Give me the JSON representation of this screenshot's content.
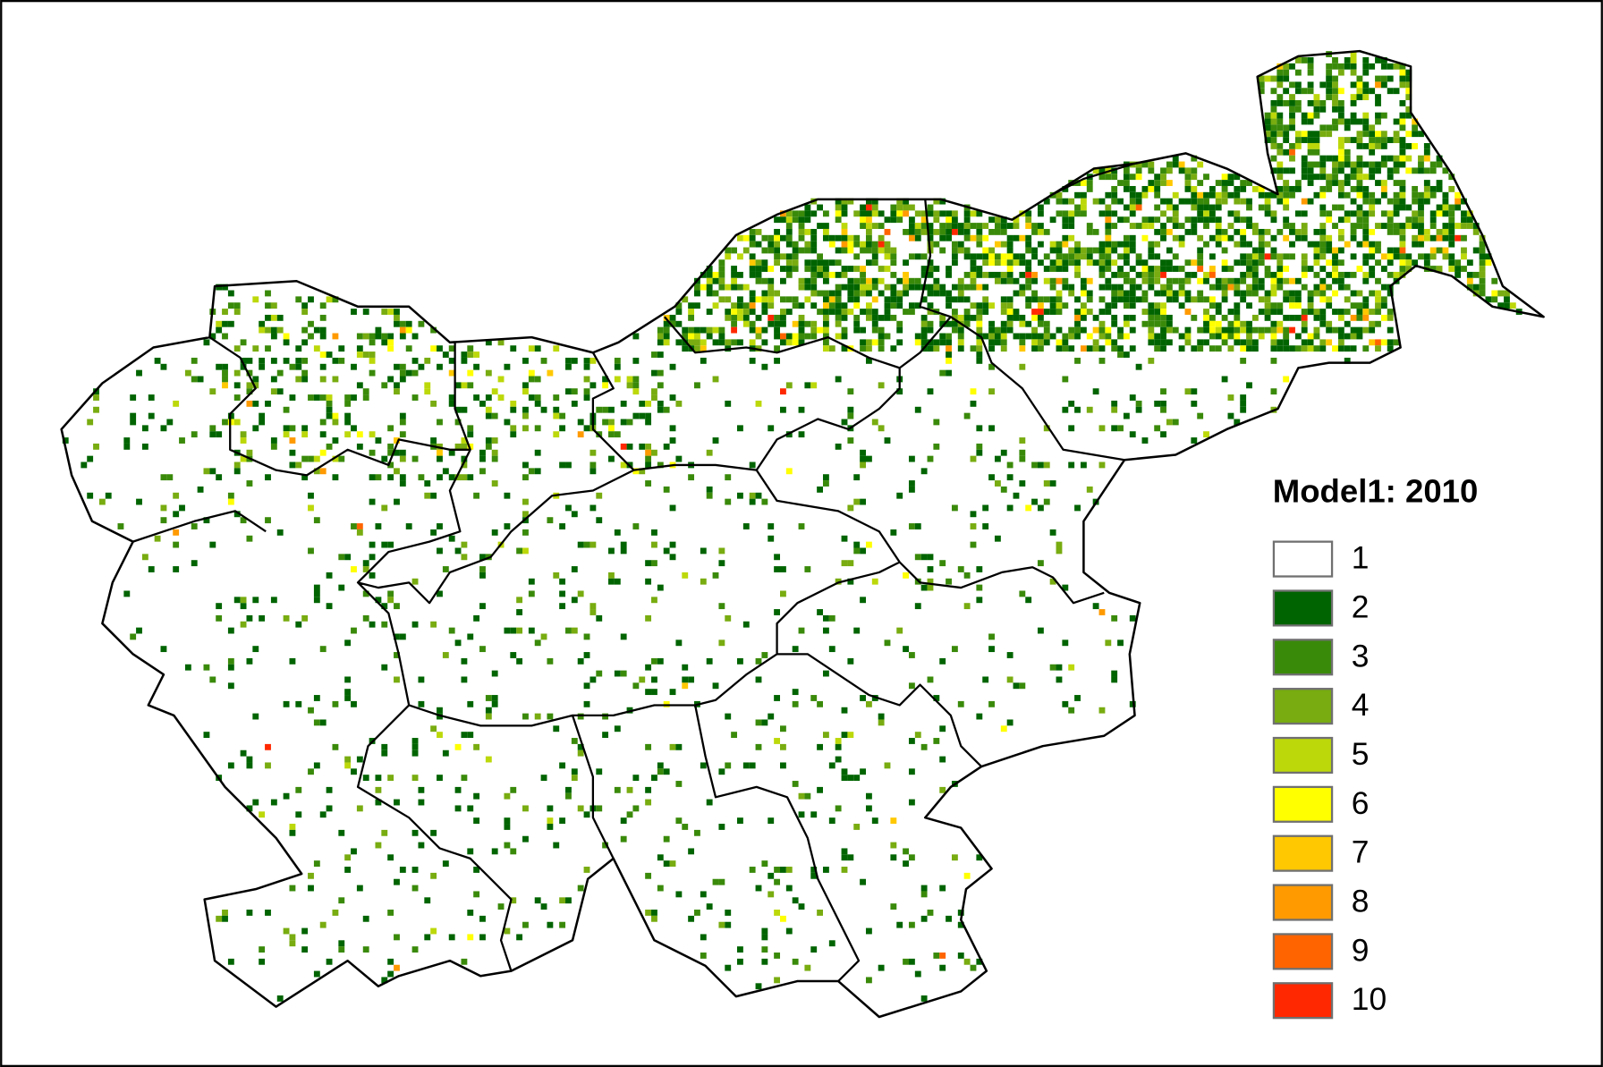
{
  "legend": {
    "title": "Model1: 2010",
    "items": [
      {
        "label": "1",
        "color": "#ffffff"
      },
      {
        "label": "2",
        "color": "#006400"
      },
      {
        "label": "3",
        "color": "#3a8a0a"
      },
      {
        "label": "4",
        "color": "#78ac10"
      },
      {
        "label": "5",
        "color": "#bcd80a"
      },
      {
        "label": "6",
        "color": "#ffff00"
      },
      {
        "label": "7",
        "color": "#ffc800"
      },
      {
        "label": "8",
        "color": "#ff9a00"
      },
      {
        "label": "9",
        "color": "#ff6400"
      },
      {
        "label": "10",
        "color": "#ff2800"
      }
    ]
  }
}
